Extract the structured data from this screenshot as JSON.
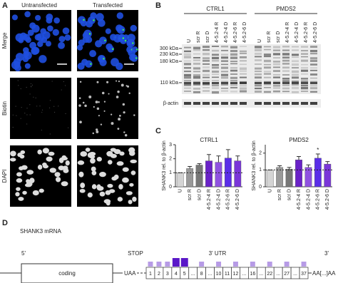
{
  "panel_a": {
    "label": "A",
    "columns": [
      "Untransfected",
      "Transfected"
    ],
    "rows": [
      "Merge",
      "Biotin",
      "DAPI"
    ]
  },
  "panel_b": {
    "label": "B",
    "groups": [
      "CTRL1",
      "PMDS2"
    ],
    "lanes": [
      "U",
      "scr R",
      "scr D",
      "4-5.2-4 R",
      "4-5.2-4 D",
      "4-5.2-6 R",
      "4-5.2-6 D",
      "U",
      "scr R",
      "scr D",
      "4-5.2-4 R",
      "4-5.2-4 D",
      "4-5.2-6 R",
      "4-5.2-6 D"
    ],
    "markers": [
      "300 kDa",
      "230 kDa",
      "180 kDa",
      "110 kDa"
    ],
    "loading_control": "β-actin"
  },
  "panel_c": {
    "label": "C"
  },
  "chart_data": [
    {
      "type": "bar",
      "title": "CTRL1",
      "y_label": "SHANK3 rel. to β-actin",
      "categories": [
        "U",
        "scr R",
        "scr D",
        "4-5.2-4 R",
        "4-5.2-4 D",
        "4-5.2-6 R",
        "4-5.2-6 D"
      ],
      "values": [
        1.0,
        1.3,
        1.55,
        1.85,
        1.75,
        2.05,
        1.85
      ],
      "errors": [
        0,
        0.15,
        0.1,
        0.45,
        0.45,
        0.6,
        0.35
      ],
      "colors": [
        "#d4d4d4",
        "#999999",
        "#777777",
        "#6a22c8",
        "#8f52e0",
        "#5a2ee8",
        "#7a36d8"
      ],
      "ylim": [
        0,
        3
      ],
      "yticks": [
        0,
        1,
        2,
        3
      ],
      "reference_line": 1
    },
    {
      "type": "bar",
      "title": "PMDS2",
      "y_label": "SHANK3 rel. to β-actin",
      "categories": [
        "U",
        "scr R",
        "scr D",
        "4-5.2-4 R",
        "4-5.2-4 D",
        "4-5.2-6 R",
        "4-5.2-6 D"
      ],
      "values": [
        1.0,
        1.15,
        1.05,
        1.6,
        1.15,
        1.7,
        1.35
      ],
      "errors": [
        0,
        0.1,
        0.1,
        0.2,
        0.15,
        0.25,
        0.15
      ],
      "colors": [
        "#d4d4d4",
        "#999999",
        "#777777",
        "#6a22c8",
        "#8f52e0",
        "#5a2ee8",
        "#7a36d8"
      ],
      "ylim": [
        0,
        2.5
      ],
      "yticks": [
        0,
        1,
        2
      ],
      "reference_line": 1,
      "annotation": {
        "text": "*",
        "category": "4-5.2-6 R"
      }
    }
  ],
  "panel_d": {
    "label": "D",
    "title": "SHANK3 mRNA",
    "five_prime": "5'",
    "stop": "STOP",
    "utr": "3' UTR",
    "three_prime": "3'",
    "coding": "coding",
    "stop_codon": "UAA",
    "poly_a": "AA[...]AA",
    "exons": [
      "1",
      "2",
      "3",
      "4",
      "5",
      "...",
      "8",
      "...",
      "10",
      "11",
      "12",
      "...",
      "16",
      "...",
      "22",
      "...",
      "27",
      "...",
      "37"
    ]
  }
}
